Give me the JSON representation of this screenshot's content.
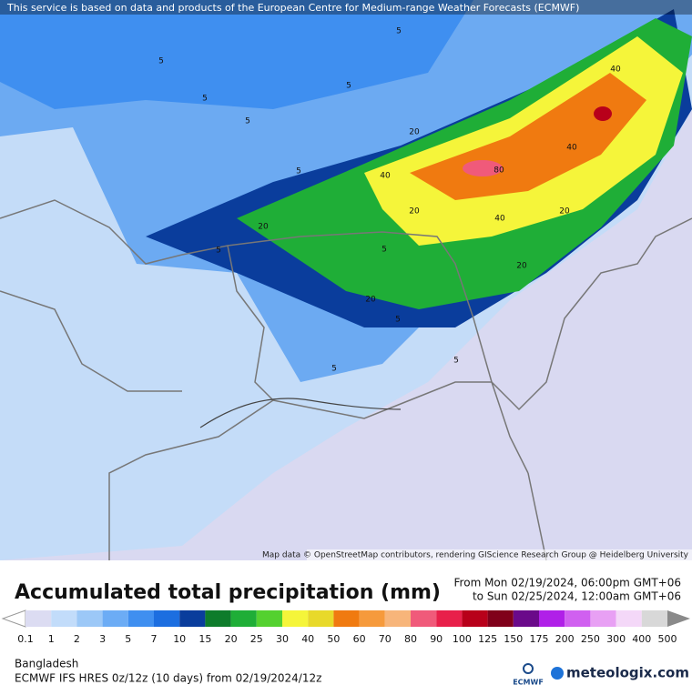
{
  "attribution_top": "This service is based on data and products of the European Centre for Medium-range Weather Forecasts (ECMWF)",
  "map_credit": "Map data © OpenStreetMap contributors, rendering GIScience Research Group @ Heidelberg University",
  "contour_labels": [
    5,
    5,
    5,
    5,
    5,
    5,
    5,
    5,
    5,
    5,
    5,
    20,
    20,
    20,
    20,
    20,
    20,
    40,
    40,
    40,
    40,
    80
  ],
  "title": "Accumulated total precipitation (mm)",
  "period": {
    "from": "From Mon 02/19/2024, 06:00pm GMT+06",
    "to": "to Sun 02/25/2024, 12:00am GMT+06"
  },
  "colorbar": {
    "ticks": [
      0.1,
      1,
      2,
      3,
      5,
      7,
      10,
      15,
      20,
      25,
      30,
      40,
      50,
      60,
      70,
      80,
      90,
      100,
      125,
      150,
      175,
      200,
      250,
      300,
      400,
      500
    ],
    "under_color": "#ffffff",
    "colors": [
      "#dcdcf2",
      "#c2dcfa",
      "#9cc8f7",
      "#6cacf5",
      "#3f8ff0",
      "#1c6ee0",
      "#0a3d9c",
      "#0e7c2b",
      "#1fae37",
      "#54d12f",
      "#f5f53a",
      "#e8d92a",
      "#f07a10",
      "#f69a3c",
      "#f7b57a",
      "#f05a7a",
      "#e8204a",
      "#b8001a",
      "#80001a",
      "#6a0a8a",
      "#b020e8",
      "#d060f0",
      "#e8a0f4",
      "#f4d8f8",
      "#d8d8d8"
    ],
    "over_color": "#8a8a8a"
  },
  "region": "Bangladesh",
  "model": "ECMWF IFS HRES 0z/12z (10 days) from 02/19/2024/12z",
  "logos": {
    "ecmwf": "ECMWF",
    "brand": "meteologix.com"
  }
}
